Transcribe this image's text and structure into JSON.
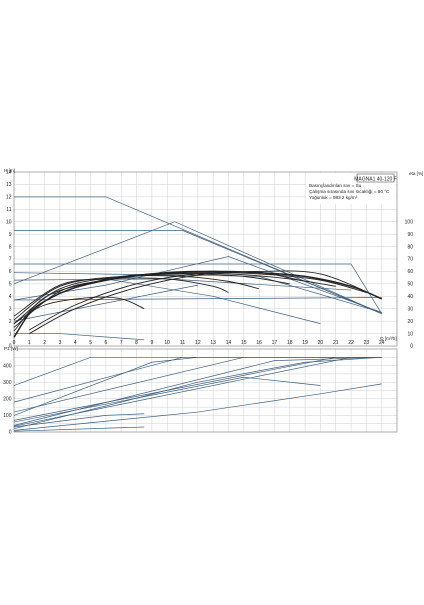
{
  "header": {
    "model": "MAGNA1 40-120 F",
    "info": [
      "Basınçlandırılan sıvı = Su",
      "Çalışma sırasında sıvı sıcaklığı = 60 °C",
      "Yoğunluk = 983.2 kg/m³"
    ]
  },
  "chart_data": [
    {
      "type": "line",
      "panel": "head",
      "ylabel": "H [m]",
      "y2label": "eta [%]",
      "xlabel": "Q [m³/h]",
      "xlim": [
        0,
        25
      ],
      "ylim": [
        0,
        14
      ],
      "y2lim": [
        0,
        140
      ],
      "x_ticks": [
        0,
        1,
        2,
        3,
        4,
        5,
        6,
        7,
        8,
        9,
        10,
        11,
        12,
        13,
        14,
        15,
        16,
        17,
        18,
        19,
        20,
        21,
        22,
        23,
        24
      ],
      "y_ticks": [
        0,
        1,
        2,
        3,
        4,
        5,
        6,
        7,
        8,
        9,
        10,
        11,
        12,
        13,
        14
      ],
      "y2_ticks": [
        0,
        10,
        20,
        30,
        40,
        50,
        60,
        70,
        80,
        90,
        100
      ],
      "grid": true,
      "series": [
        {
          "group": "control",
          "points": [
            [
              0,
              12
            ],
            [
              6,
              12
            ],
            [
              24,
              2.6
            ]
          ]
        },
        {
          "group": "control",
          "points": [
            [
              0,
              9.3
            ],
            [
              11,
              9.3
            ],
            [
              24,
              2.6
            ]
          ]
        },
        {
          "group": "control",
          "points": [
            [
              0,
              6.6
            ],
            [
              22,
              6.6
            ],
            [
              24,
              2.6
            ]
          ]
        },
        {
          "group": "control",
          "points": [
            [
              0,
              5.9
            ],
            [
              16,
              5.6
            ],
            [
              24,
              2.7
            ]
          ]
        },
        {
          "group": "control",
          "points": [
            [
              0,
              5.3
            ],
            [
              10,
              5.4
            ],
            [
              22,
              4.5
            ]
          ]
        },
        {
          "group": "control",
          "points": [
            [
              0,
              3.7
            ],
            [
              6,
              4.9
            ],
            [
              14,
              7.2
            ],
            [
              24,
              2.7
            ]
          ]
        },
        {
          "group": "control",
          "points": [
            [
              0,
              3.7
            ],
            [
              24,
              3.9
            ]
          ]
        },
        {
          "group": "control",
          "points": [
            [
              0,
              5
            ],
            [
              10.5,
              10
            ],
            [
              24,
              2.6
            ]
          ]
        },
        {
          "group": "control",
          "points": [
            [
              0,
              2
            ],
            [
              12,
              4.9
            ]
          ]
        },
        {
          "group": "control",
          "points": [
            [
              0,
              1
            ],
            [
              3,
              1
            ],
            [
              8.5,
              0.5
            ]
          ]
        },
        {
          "group": "control",
          "points": [
            [
              6,
              5.4
            ],
            [
              13,
              4
            ],
            [
              20,
              1.8
            ]
          ]
        },
        {
          "group": "pump",
          "points": [
            [
              0,
              0.7
            ],
            [
              1,
              2.6
            ],
            [
              2,
              3.6
            ],
            [
              4,
              4.7
            ],
            [
              7,
              5.5
            ],
            [
              10,
              5.9
            ],
            [
              13,
              6
            ],
            [
              16,
              5.9
            ],
            [
              19,
              5.6
            ],
            [
              22,
              4.8
            ],
            [
              24,
              3.8
            ]
          ]
        },
        {
          "group": "pump",
          "points": [
            [
              0,
              1.2
            ],
            [
              2,
              3.9
            ],
            [
              5,
              5.1
            ],
            [
              8,
              5.7
            ],
            [
              12,
              5.9
            ],
            [
              16,
              5.8
            ],
            [
              20,
              5.3
            ],
            [
              23,
              4.3
            ]
          ]
        },
        {
          "group": "pump",
          "points": [
            [
              0,
              1.5
            ],
            [
              3,
              4.4
            ],
            [
              6,
              5.3
            ],
            [
              10,
              5.8
            ],
            [
              14,
              5.8
            ],
            [
              18,
              5.4
            ],
            [
              21,
              4.8
            ]
          ]
        },
        {
          "group": "pump",
          "points": [
            [
              0,
              1.8
            ],
            [
              3,
              4.6
            ],
            [
              7,
              5.6
            ],
            [
              11,
              5.8
            ],
            [
              15,
              5.6
            ],
            [
              18,
              5
            ]
          ]
        },
        {
          "group": "pump",
          "points": [
            [
              0,
              2.1
            ],
            [
              3,
              4.8
            ],
            [
              7,
              5.6
            ],
            [
              11,
              5.6
            ],
            [
              14,
              5.2
            ],
            [
              16,
              4.6
            ]
          ]
        },
        {
          "group": "pump",
          "points": [
            [
              0,
              2.4
            ],
            [
              3,
              4.9
            ],
            [
              6,
              5.4
            ],
            [
              10,
              5.4
            ],
            [
              13,
              4.8
            ],
            [
              14,
              4.3
            ]
          ]
        },
        {
          "group": "pump",
          "points": [
            [
              0,
              1.8
            ],
            [
              2,
              3.3
            ],
            [
              5,
              3.9
            ],
            [
              7,
              3.8
            ],
            [
              8.5,
              3
            ]
          ]
        }
      ],
      "eta_series": [
        {
          "points": [
            [
              1,
              10
            ],
            [
              4,
              30
            ],
            [
              8,
              47
            ],
            [
              12,
              57
            ],
            [
              16,
              60
            ],
            [
              20,
              58
            ],
            [
              24,
              38
            ]
          ]
        },
        {
          "points": [
            [
              1,
              13
            ],
            [
              4,
              33
            ],
            [
              8,
              50
            ],
            [
              12,
              58
            ],
            [
              16,
              59
            ],
            [
              19,
              52
            ]
          ]
        }
      ]
    },
    {
      "type": "line",
      "panel": "power",
      "ylabel": "P1 [W]",
      "xlim": [
        0,
        25
      ],
      "ylim": [
        0,
        500
      ],
      "y_ticks": [
        0,
        100,
        200,
        300,
        400
      ],
      "grid": true,
      "series": [
        {
          "points": [
            [
              0,
              280
            ],
            [
              5,
              450
            ],
            [
              24,
              450
            ]
          ]
        },
        {
          "points": [
            [
              0,
              180
            ],
            [
              11,
              450
            ],
            [
              24,
              450
            ]
          ]
        },
        {
          "points": [
            [
              0,
              120
            ],
            [
              15,
              450
            ],
            [
              24,
              450
            ]
          ]
        },
        {
          "points": [
            [
              0,
              70
            ],
            [
              21,
              450
            ],
            [
              24,
              450
            ]
          ]
        },
        {
          "points": [
            [
              0,
              60
            ],
            [
              15,
              330
            ],
            [
              20,
              280
            ]
          ]
        },
        {
          "points": [
            [
              0,
              100
            ],
            [
              9,
              420
            ],
            [
              12,
              450
            ],
            [
              24,
              450
            ]
          ]
        },
        {
          "points": [
            [
              0,
              40
            ],
            [
              17,
              430
            ],
            [
              24,
              450
            ]
          ]
        },
        {
          "points": [
            [
              0,
              35
            ],
            [
              22,
              450
            ],
            [
              24,
              450
            ]
          ]
        },
        {
          "points": [
            [
              0,
              20
            ],
            [
              7,
              180
            ],
            [
              12,
              300
            ],
            [
              19,
              420
            ],
            [
              24,
              450
            ]
          ]
        },
        {
          "points": [
            [
              0,
              30
            ],
            [
              6,
              100
            ],
            [
              8.5,
              110
            ]
          ]
        },
        {
          "points": [
            [
              0,
              5
            ],
            [
              8.5,
              30
            ]
          ]
        },
        {
          "points": [
            [
              0,
              10
            ],
            [
              12,
              120
            ],
            [
              20,
              230
            ],
            [
              24,
              290
            ]
          ]
        }
      ]
    }
  ]
}
